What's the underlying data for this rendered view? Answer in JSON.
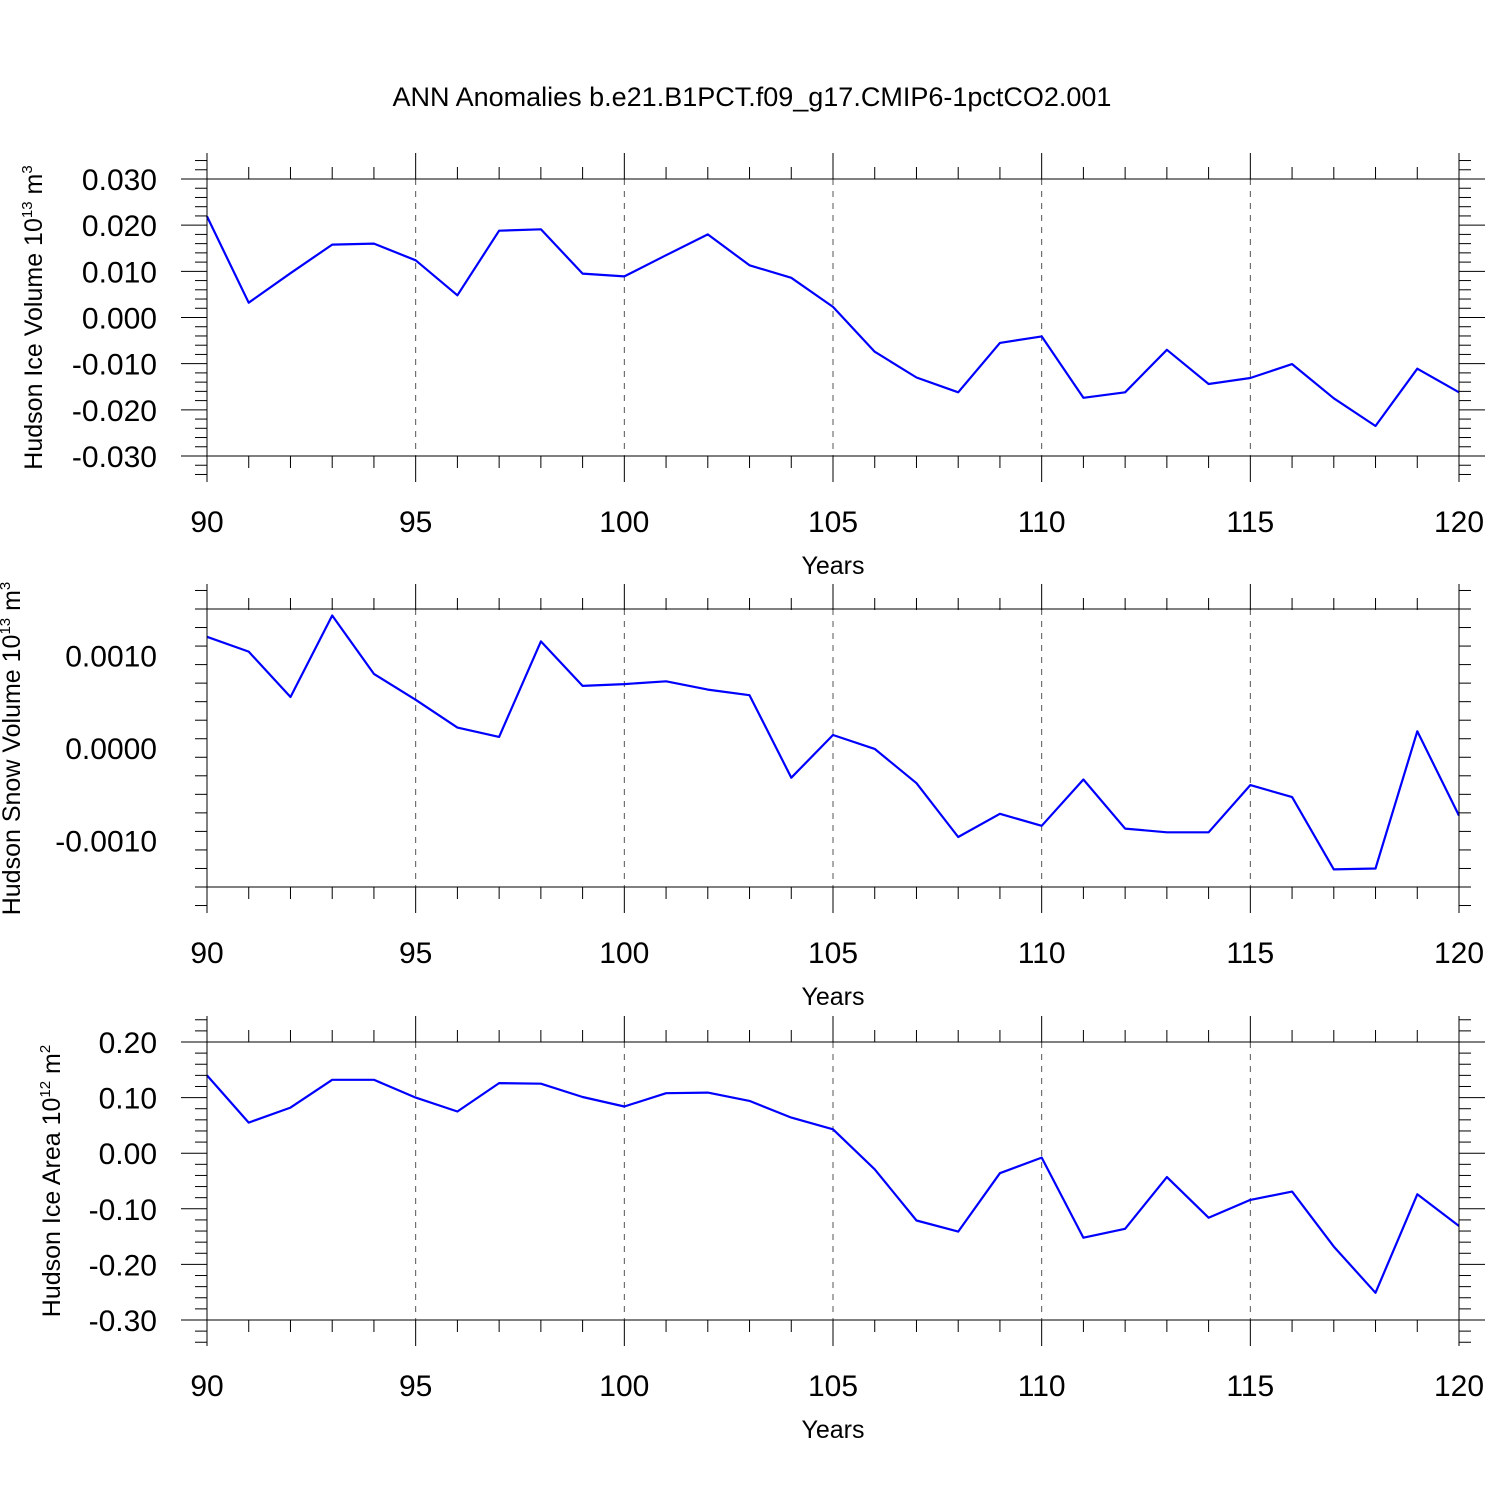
{
  "figure_title": "ANN Anomalies b.e21.B1PCT.f09_g17.CMIP6-1pctCO2.001",
  "line_color": "#0000ff",
  "chart_data": [
    {
      "type": "line",
      "title": "",
      "xlabel": "Years",
      "ylabel": {
        "text": "Hudson Ice Volume 10",
        "exp": "13",
        "unit": " m",
        "unit_exp": "3"
      },
      "xlim": [
        90,
        120
      ],
      "ylim": [
        -0.03,
        0.03
      ],
      "xticks": [
        "90",
        "95",
        "100",
        "105",
        "110",
        "115",
        "120"
      ],
      "yticks": [
        {
          "value": 0.03,
          "label": "0.030"
        },
        {
          "value": 0.02,
          "label": "0.020"
        },
        {
          "value": 0.01,
          "label": "0.010"
        },
        {
          "value": 0.0,
          "label": "0.000"
        },
        {
          "value": -0.01,
          "label": "-0.010"
        },
        {
          "value": -0.02,
          "label": "-0.020"
        },
        {
          "value": -0.03,
          "label": "-0.030"
        }
      ],
      "grid": "vertical dashed at major x ticks",
      "x": [
        90,
        91,
        92,
        93,
        94,
        95,
        96,
        97,
        98,
        99,
        100,
        101,
        102,
        103,
        104,
        105,
        106,
        107,
        108,
        109,
        110,
        111,
        112,
        113,
        114,
        115,
        116,
        117,
        118,
        119,
        120
      ],
      "y": [
        0.0219,
        0.0032,
        0.0096,
        0.0158,
        0.016,
        0.0124,
        0.0048,
        0.0188,
        0.0191,
        0.0095,
        0.0089,
        0.0135,
        0.018,
        0.0113,
        0.0086,
        0.0023,
        -0.0074,
        -0.013,
        -0.0162,
        -0.0055,
        -0.0041,
        -0.0174,
        -0.0162,
        -0.007,
        -0.0144,
        -0.0131,
        -0.0101,
        -0.0175,
        -0.0235,
        -0.0111,
        -0.0162
      ]
    },
    {
      "type": "line",
      "title": "",
      "xlabel": "Years",
      "ylabel": {
        "text": "Hudson Snow Volume 10",
        "exp": "13",
        "unit": " m",
        "unit_exp": "3"
      },
      "xlim": [
        90,
        120
      ],
      "ylim": [
        -0.0015,
        0.0015
      ],
      "xticks": [
        "90",
        "95",
        "100",
        "105",
        "110",
        "115",
        "120"
      ],
      "yticks": [
        {
          "value": 0.001,
          "label": "0.0010"
        },
        {
          "value": 0.0,
          "label": "0.0000"
        },
        {
          "value": -0.001,
          "label": "-0.0010"
        }
      ],
      "grid": "vertical dashed at major x ticks",
      "x": [
        90,
        91,
        92,
        93,
        94,
        95,
        96,
        97,
        98,
        99,
        100,
        101,
        102,
        103,
        104,
        105,
        106,
        107,
        108,
        109,
        110,
        111,
        112,
        113,
        114,
        115,
        116,
        117,
        118,
        119,
        120
      ],
      "y": [
        0.0012,
        0.00104,
        0.00055,
        0.00143,
        0.0008,
        0.00052,
        0.00022,
        0.00012,
        0.00115,
        0.00067,
        0.00069,
        0.00072,
        0.00063,
        0.00057,
        -0.00032,
        0.00014,
        -1e-05,
        -0.00038,
        -0.00096,
        -0.00071,
        -0.00084,
        -0.00034,
        -0.00087,
        -0.00091,
        -0.00091,
        -0.0004,
        -0.00053,
        -0.00131,
        -0.0013,
        0.00018,
        -0.00073
      ]
    },
    {
      "type": "line",
      "title": "",
      "xlabel": "Years",
      "ylabel": {
        "text": "Hudson Ice Area 10",
        "exp": "12",
        "unit": " m",
        "unit_exp": "2"
      },
      "xlim": [
        90,
        120
      ],
      "ylim": [
        -0.3,
        0.2
      ],
      "xticks": [
        "90",
        "95",
        "100",
        "105",
        "110",
        "115",
        "120"
      ],
      "yticks": [
        {
          "value": 0.2,
          "label": "0.20"
        },
        {
          "value": 0.1,
          "label": "0.10"
        },
        {
          "value": 0.0,
          "label": "0.00"
        },
        {
          "value": -0.1,
          "label": "-0.10"
        },
        {
          "value": -0.2,
          "label": "-0.20"
        },
        {
          "value": -0.3,
          "label": "-0.30"
        }
      ],
      "grid": "vertical dashed at major x ticks",
      "x": [
        90,
        91,
        92,
        93,
        94,
        95,
        96,
        97,
        98,
        99,
        100,
        101,
        102,
        103,
        104,
        105,
        106,
        107,
        108,
        109,
        110,
        111,
        112,
        113,
        114,
        115,
        116,
        117,
        118,
        119,
        120
      ],
      "y": [
        0.14,
        0.055,
        0.082,
        0.132,
        0.132,
        0.1,
        0.075,
        0.126,
        0.125,
        0.101,
        0.084,
        0.108,
        0.109,
        0.094,
        0.064,
        0.043,
        -0.029,
        -0.121,
        -0.141,
        -0.036,
        -0.008,
        -0.152,
        -0.136,
        -0.043,
        -0.116,
        -0.084,
        -0.069,
        -0.168,
        -0.251,
        -0.074,
        -0.131
      ]
    }
  ]
}
